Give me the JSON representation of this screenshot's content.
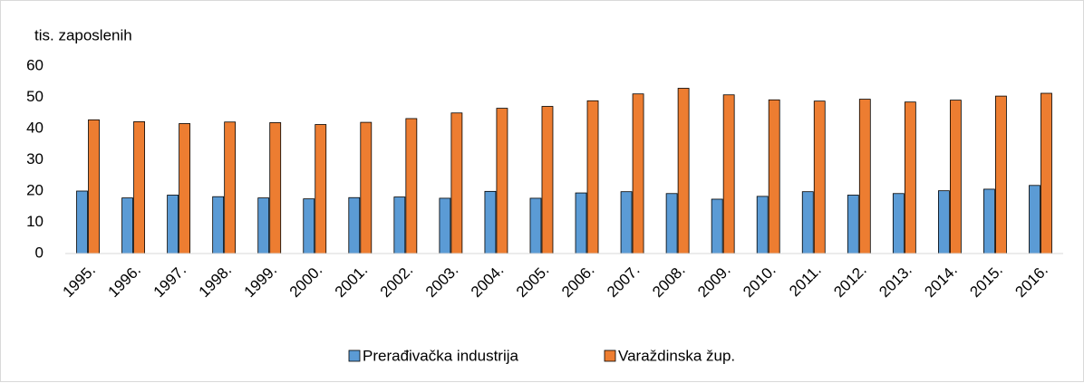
{
  "chart_data": {
    "type": "bar",
    "ylabel": "tis. zaposlenih",
    "categories": [
      "1995.",
      "1996.",
      "1997.",
      "1998.",
      "1999.",
      "2000.",
      "2001.",
      "2002.",
      "2003.",
      "2004.",
      "2005.",
      "2006.",
      "2007.",
      "2008.",
      "2009.",
      "2010.",
      "2011.",
      "2012.",
      "2013.",
      "2014.",
      "2015.",
      "2016."
    ],
    "series": [
      {
        "name": "Prerađivačka industrija",
        "color": "#5b9bd5",
        "values": [
          20.0,
          17.8,
          18.7,
          18.2,
          17.8,
          17.5,
          17.9,
          18.1,
          17.7,
          19.9,
          17.7,
          19.4,
          19.8,
          19.2,
          17.4,
          18.3,
          19.8,
          18.7,
          19.2,
          20.1,
          20.6,
          21.8
        ]
      },
      {
        "name": "Varaždinska žup.",
        "color": "#ed7d31",
        "values": [
          42.8,
          42.2,
          41.6,
          42.1,
          41.9,
          41.3,
          42.0,
          43.2,
          45.0,
          46.5,
          47.1,
          48.9,
          51.1,
          52.9,
          50.8,
          49.2,
          48.8,
          49.4,
          48.5,
          49.1,
          50.4,
          51.3
        ]
      }
    ],
    "ylim": [
      0,
      60
    ],
    "yticks": [
      0,
      10,
      20,
      30,
      40,
      50,
      60
    ],
    "grid": false,
    "legend": "bottom"
  }
}
